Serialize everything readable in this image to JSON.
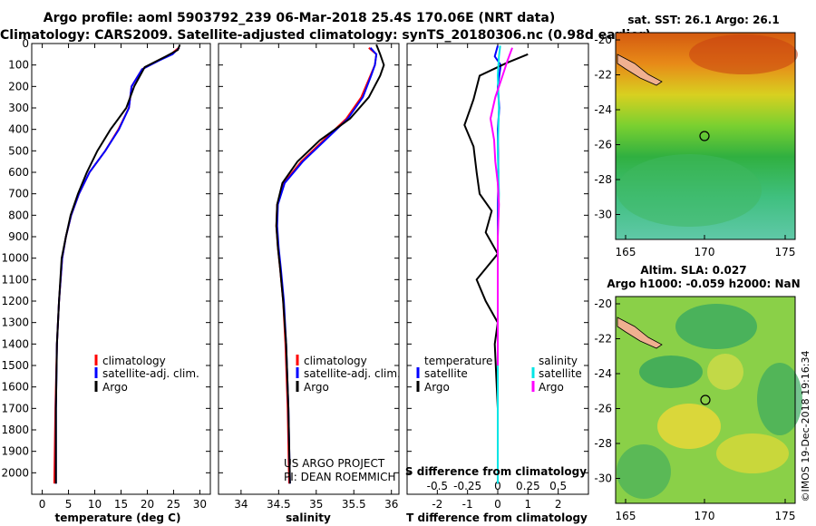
{
  "header": {
    "line1": "Argo profile: aoml 5903792_239 06-Mar-2018 25.4S 170.06E (NRT data)",
    "line2": "Climatology: CARS2009. Satellite-adjusted climatology: synTS_20180306.nc (0.98d earlier)"
  },
  "colors": {
    "climatology": "#ff0000",
    "satellite": "#0000ff",
    "argo": "#000000",
    "sat_salinity": "#00e5e5",
    "argo_salinity": "#ff00ff"
  },
  "chart_data": [
    {
      "type": "line",
      "xlabel": "temperature (deg C)",
      "ylabel": "",
      "xlim": [
        -2,
        32
      ],
      "ylim": [
        2100,
        0
      ],
      "xticks": [
        "0",
        "5",
        "10",
        "15",
        "20",
        "25",
        "30"
      ],
      "xtick_values": [
        0,
        5,
        10,
        15,
        20,
        25,
        30
      ],
      "yticks": [
        "0",
        "100",
        "200",
        "300",
        "400",
        "500",
        "600",
        "700",
        "800",
        "900",
        "1000",
        "1100",
        "1200",
        "1300",
        "1400",
        "1500",
        "1600",
        "1700",
        "1800",
        "1900",
        "2000"
      ],
      "ytick_values": [
        0,
        100,
        200,
        300,
        400,
        500,
        600,
        700,
        800,
        900,
        1000,
        1100,
        1200,
        1300,
        1400,
        1500,
        1600,
        1700,
        1800,
        1900,
        2000
      ],
      "legend": [
        "climatology",
        "satellite-adj. clim.",
        "Argo"
      ],
      "series": [
        {
          "name": "climatology",
          "color": "#ff0000",
          "x": [
            26.0,
            24.5,
            22.0,
            19.0,
            17.0,
            16.5,
            14.5,
            12.0,
            9.0,
            7.0,
            5.5,
            4.5,
            3.8,
            3.2,
            2.8,
            2.5,
            2.3
          ],
          "y": [
            20,
            50,
            80,
            120,
            200,
            300,
            400,
            500,
            600,
            700,
            800,
            900,
            1000,
            1200,
            1400,
            1700,
            2050
          ]
        },
        {
          "name": "satellite-adj. clim.",
          "color": "#0000ff",
          "x": [
            26.1,
            24.8,
            22.2,
            19.0,
            17.0,
            16.5,
            14.6,
            12.0,
            9.0,
            7.0,
            5.5,
            4.5,
            3.8,
            3.2,
            2.8,
            2.6,
            2.6
          ],
          "y": [
            20,
            50,
            80,
            120,
            200,
            300,
            400,
            500,
            600,
            700,
            800,
            900,
            1000,
            1200,
            1400,
            1700,
            2050
          ]
        },
        {
          "name": "Argo",
          "color": "#000000",
          "x": [
            26.2,
            25.8,
            23.5,
            19.5,
            17.5,
            16.0,
            13.0,
            10.5,
            8.5,
            6.8,
            5.4,
            4.5,
            3.7,
            3.2,
            2.8,
            2.6,
            2.6
          ],
          "y": [
            5,
            30,
            60,
            110,
            200,
            300,
            400,
            500,
            600,
            700,
            800,
            900,
            1000,
            1200,
            1400,
            1700,
            2050
          ]
        }
      ]
    },
    {
      "type": "line",
      "xlabel": "salinity",
      "xlim": [
        33.7,
        36.1
      ],
      "ylim": [
        2100,
        0
      ],
      "xticks": [
        "34",
        "34.5",
        "35",
        "35.5",
        "36"
      ],
      "xtick_values": [
        34,
        34.5,
        35,
        35.5,
        36
      ],
      "legend": [
        "climatology",
        "satellite-adj. clim.",
        "Argo"
      ],
      "annotation": [
        "US ARGO PROJECT",
        "PI: DEAN ROEMMICH"
      ],
      "series": [
        {
          "name": "climatology",
          "color": "#ff0000",
          "x": [
            35.7,
            35.8,
            35.78,
            35.72,
            35.6,
            35.4,
            35.1,
            34.8,
            34.57,
            34.48,
            34.47,
            34.49,
            34.52,
            34.56,
            34.59,
            34.62,
            34.64
          ],
          "y": [
            20,
            50,
            100,
            150,
            250,
            350,
            450,
            550,
            650,
            750,
            850,
            950,
            1050,
            1200,
            1400,
            1700,
            2050
          ]
        },
        {
          "name": "satellite-adj. clim.",
          "color": "#0000ff",
          "x": [
            35.72,
            35.8,
            35.78,
            35.73,
            35.62,
            35.42,
            35.12,
            34.82,
            34.58,
            34.49,
            34.48,
            34.5,
            34.53,
            34.57,
            34.6,
            34.63,
            34.65
          ],
          "y": [
            20,
            50,
            100,
            150,
            250,
            350,
            450,
            550,
            650,
            750,
            850,
            950,
            1050,
            1200,
            1400,
            1700,
            2050
          ]
        },
        {
          "name": "Argo",
          "color": "#000000",
          "x": [
            35.8,
            35.85,
            35.9,
            35.85,
            35.7,
            35.45,
            35.05,
            34.75,
            34.55,
            34.48,
            34.47,
            34.49,
            34.52,
            34.56,
            34.6,
            34.63,
            34.65
          ],
          "y": [
            5,
            50,
            100,
            150,
            250,
            350,
            450,
            550,
            650,
            750,
            850,
            950,
            1050,
            1200,
            1400,
            1700,
            2050
          ]
        }
      ]
    },
    {
      "type": "line",
      "xlabel": "T difference from climatology",
      "xlabel2": "S difference from climatology",
      "xlim": [
        -3,
        3
      ],
      "ylim": [
        2100,
        0
      ],
      "xticks": [
        "-2",
        "-1",
        "0",
        "1",
        "2"
      ],
      "xtick_values": [
        -2,
        -1,
        0,
        1,
        2
      ],
      "s_ticks": [
        "-0.5",
        "-0.25",
        "0",
        "0.25",
        "0.5"
      ],
      "s_tick_values": [
        -0.5,
        -0.25,
        0,
        0.25,
        0.5
      ],
      "legend_temperature_title": "temperature",
      "legend_salinity_title": "salinity",
      "legend_temperature": [
        "satellite",
        "Argo"
      ],
      "legend_salinity": [
        "satellite",
        "Argo"
      ],
      "series": [
        {
          "name": "temperature satellite",
          "color": "#0000ff",
          "x": [
            0.0,
            -0.1,
            0.1,
            0.0,
            0.05,
            0.0,
            0.02,
            0.0,
            0.0,
            0.0,
            0.0,
            0.0
          ],
          "y": [
            10,
            60,
            100,
            200,
            300,
            400,
            600,
            800,
            1000,
            1400,
            1700,
            2050
          ]
        },
        {
          "name": "temperature Argo",
          "color": "#000000",
          "x": [
            1.0,
            0.3,
            -0.6,
            -0.8,
            -0.9,
            -1.1,
            -0.8,
            -0.7,
            -0.6,
            -0.2,
            -0.4,
            0.0,
            -0.7,
            -0.4,
            0.0,
            -0.1,
            0.0,
            0.0
          ],
          "y": [
            50,
            90,
            150,
            260,
            300,
            380,
            480,
            600,
            700,
            780,
            880,
            980,
            1100,
            1200,
            1300,
            1400,
            1700,
            2050
          ]
        },
        {
          "name": "salinity satellite",
          "color": "#00e5e5",
          "x": [
            0.02,
            0.01,
            0.0,
            0.01,
            0.0,
            0.01,
            0.0,
            0.0,
            0.0,
            0.0,
            0.0
          ],
          "y": [
            10,
            60,
            150,
            300,
            500,
            700,
            900,
            1200,
            1500,
            1800,
            2050
          ]
        },
        {
          "name": "salinity Argo",
          "color": "#ff00ff",
          "x": [
            0.12,
            0.08,
            0.04,
            -0.02,
            -0.06,
            -0.03,
            -0.02,
            0.0,
            0.01,
            0.0,
            0.0,
            0.0
          ],
          "y": [
            20,
            80,
            150,
            250,
            350,
            450,
            550,
            650,
            750,
            900,
            1200,
            1500
          ]
        }
      ]
    }
  ],
  "maps": {
    "sst": {
      "title": "sat. SST: 26.1 Argo: 26.1",
      "yticks": [
        "-20",
        "-22",
        "-24",
        "-26",
        "-28",
        "-30"
      ],
      "xticks": [
        "165",
        "170",
        "175"
      ]
    },
    "sla": {
      "title_line1": "Altim. SLA: 0.027",
      "title_line2": "Argo h1000: -0.059 h2000: NaN",
      "yticks": [
        "-20",
        "-22",
        "-24",
        "-26",
        "-28",
        "-30"
      ],
      "xticks": [
        "165",
        "170",
        "175"
      ]
    },
    "credit": "©IMOS 19-Dec-2018 19:16:34"
  }
}
